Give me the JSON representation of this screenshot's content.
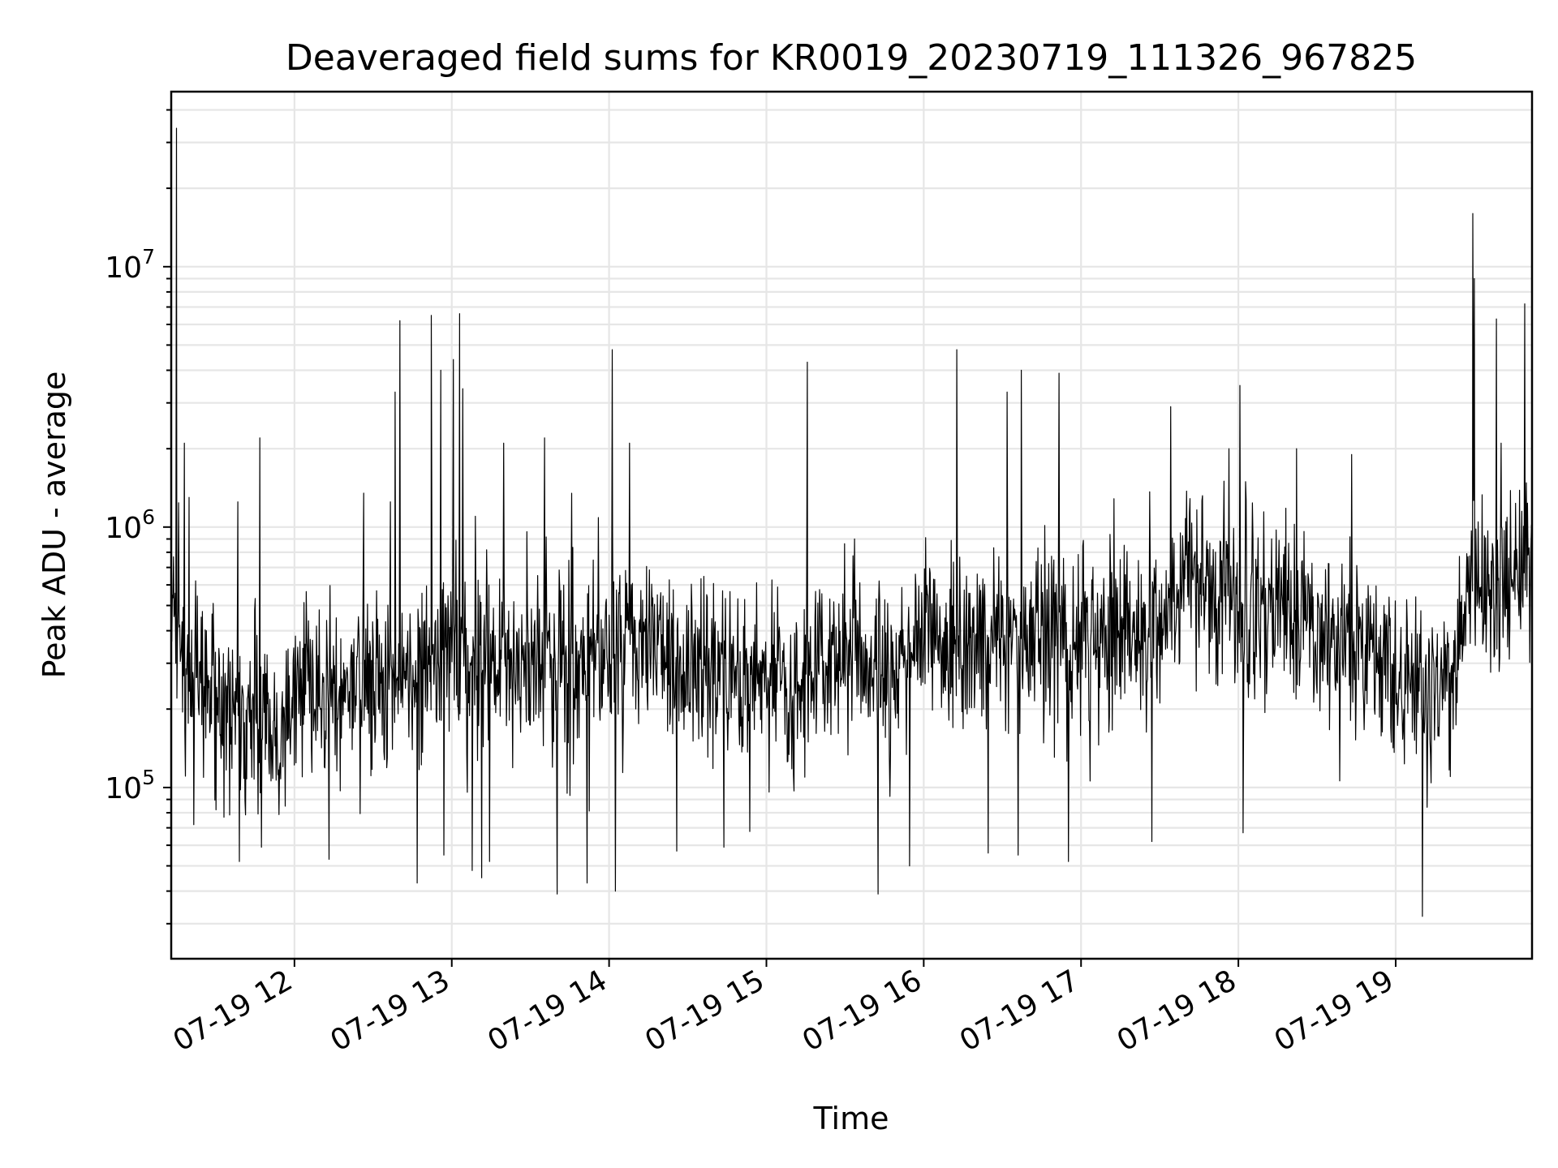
{
  "chart_data": {
    "type": "line",
    "title": "Deaveraged field sums for KR0019_20230719_111326_967825",
    "xlabel": "Time",
    "ylabel": "Peak ADU - average",
    "x_unit": "hour of 2023-07-19",
    "xlim": [
      "07-19 11:13",
      "07-19 19:52"
    ],
    "x_ticks": [
      {
        "hour": 12,
        "label": "07-19 12"
      },
      {
        "hour": 13,
        "label": "07-19 13"
      },
      {
        "hour": 14,
        "label": "07-19 14"
      },
      {
        "hour": 15,
        "label": "07-19 15"
      },
      {
        "hour": 16,
        "label": "07-19 16"
      },
      {
        "hour": 17,
        "label": "07-19 17"
      },
      {
        "hour": 18,
        "label": "07-19 18"
      },
      {
        "hour": 19,
        "label": "07-19 19"
      }
    ],
    "y_scale": "log",
    "ylim": [
      22000,
      47000000
    ],
    "y_ticks": [
      {
        "value": 100000,
        "base": "10",
        "exp": "5"
      },
      {
        "value": 1000000,
        "base": "10",
        "exp": "6"
      },
      {
        "value": 10000000,
        "base": "10",
        "exp": "7"
      }
    ],
    "grid": true,
    "legend": "none",
    "line_color": "#000000",
    "baseline": [
      {
        "hour": 11.23,
        "value": 500000
      },
      {
        "hour": 11.3,
        "value": 330000
      },
      {
        "hour": 11.5,
        "value": 210000
      },
      {
        "hour": 11.8,
        "value": 190000
      },
      {
        "hour": 11.95,
        "value": 160000
      },
      {
        "hour": 12.0,
        "value": 260000
      },
      {
        "hour": 12.3,
        "value": 230000
      },
      {
        "hour": 12.6,
        "value": 260000
      },
      {
        "hour": 13.0,
        "value": 300000
      },
      {
        "hour": 13.3,
        "value": 310000
      },
      {
        "hour": 13.6,
        "value": 330000
      },
      {
        "hour": 13.8,
        "value": 270000
      },
      {
        "hour": 14.0,
        "value": 340000
      },
      {
        "hour": 14.3,
        "value": 330000
      },
      {
        "hour": 14.6,
        "value": 270000
      },
      {
        "hour": 14.9,
        "value": 240000
      },
      {
        "hour": 15.2,
        "value": 260000
      },
      {
        "hour": 15.5,
        "value": 330000
      },
      {
        "hour": 15.8,
        "value": 300000
      },
      {
        "hour": 16.0,
        "value": 360000
      },
      {
        "hour": 16.3,
        "value": 370000
      },
      {
        "hour": 16.6,
        "value": 390000
      },
      {
        "hour": 16.9,
        "value": 380000
      },
      {
        "hour": 17.2,
        "value": 370000
      },
      {
        "hour": 17.5,
        "value": 430000
      },
      {
        "hour": 17.7,
        "value": 700000
      },
      {
        "hour": 17.9,
        "value": 520000
      },
      {
        "hour": 18.1,
        "value": 470000
      },
      {
        "hour": 18.4,
        "value": 420000
      },
      {
        "hour": 18.7,
        "value": 360000
      },
      {
        "hour": 19.0,
        "value": 290000
      },
      {
        "hour": 19.3,
        "value": 230000
      },
      {
        "hour": 19.4,
        "value": 280000
      },
      {
        "hour": 19.45,
        "value": 570000
      },
      {
        "hour": 19.6,
        "value": 560000
      },
      {
        "hour": 19.86,
        "value": 640000
      }
    ],
    "spikes": [
      {
        "hour": 11.25,
        "value": 34000000
      },
      {
        "hour": 11.3,
        "value": 2100000
      },
      {
        "hour": 11.33,
        "value": 1300000
      },
      {
        "hour": 11.64,
        "value": 1250000
      },
      {
        "hour": 11.78,
        "value": 2200000
      },
      {
        "hour": 12.44,
        "value": 1350000
      },
      {
        "hour": 12.61,
        "value": 1250000
      },
      {
        "hour": 12.64,
        "value": 3300000
      },
      {
        "hour": 12.67,
        "value": 6200000
      },
      {
        "hour": 12.87,
        "value": 6500000
      },
      {
        "hour": 12.93,
        "value": 4000000
      },
      {
        "hour": 13.01,
        "value": 4400000
      },
      {
        "hour": 13.05,
        "value": 6600000
      },
      {
        "hour": 13.07,
        "value": 3400000
      },
      {
        "hour": 13.15,
        "value": 1100000
      },
      {
        "hour": 13.33,
        "value": 2100000
      },
      {
        "hour": 13.59,
        "value": 2200000
      },
      {
        "hour": 14.02,
        "value": 4800000
      },
      {
        "hour": 14.13,
        "value": 2100000
      },
      {
        "hour": 15.26,
        "value": 4300000
      },
      {
        "hour": 15.56,
        "value": 900000
      },
      {
        "hour": 16.21,
        "value": 4800000
      },
      {
        "hour": 16.53,
        "value": 3300000
      },
      {
        "hour": 16.62,
        "value": 4000000
      },
      {
        "hour": 16.86,
        "value": 3900000
      },
      {
        "hour": 17.57,
        "value": 2900000
      },
      {
        "hour": 17.94,
        "value": 2000000
      },
      {
        "hour": 18.01,
        "value": 3500000
      },
      {
        "hour": 18.37,
        "value": 2000000
      },
      {
        "hour": 18.72,
        "value": 1900000
      },
      {
        "hour": 19.49,
        "value": 16000000
      },
      {
        "hour": 19.5,
        "value": 9000000
      },
      {
        "hour": 19.64,
        "value": 6300000
      },
      {
        "hour": 19.67,
        "value": 2100000
      },
      {
        "hour": 19.82,
        "value": 7200000
      }
    ],
    "dips": [
      {
        "hour": 11.36,
        "value": 72000
      },
      {
        "hour": 11.65,
        "value": 52000
      },
      {
        "hour": 11.79,
        "value": 59000
      },
      {
        "hour": 12.22,
        "value": 53000
      },
      {
        "hour": 12.78,
        "value": 43000
      },
      {
        "hour": 12.95,
        "value": 55000
      },
      {
        "hour": 13.13,
        "value": 48000
      },
      {
        "hour": 13.19,
        "value": 45000
      },
      {
        "hour": 13.24,
        "value": 52000
      },
      {
        "hour": 13.67,
        "value": 39000
      },
      {
        "hour": 13.86,
        "value": 43000
      },
      {
        "hour": 14.04,
        "value": 40000
      },
      {
        "hour": 14.43,
        "value": 57000
      },
      {
        "hour": 14.73,
        "value": 59000
      },
      {
        "hour": 15.71,
        "value": 39000
      },
      {
        "hour": 15.91,
        "value": 50000
      },
      {
        "hour": 16.41,
        "value": 56000
      },
      {
        "hour": 16.6,
        "value": 55000
      },
      {
        "hour": 16.92,
        "value": 52000
      },
      {
        "hour": 17.45,
        "value": 62000
      },
      {
        "hour": 18.03,
        "value": 67000
      },
      {
        "hour": 19.17,
        "value": 32000
      }
    ]
  }
}
